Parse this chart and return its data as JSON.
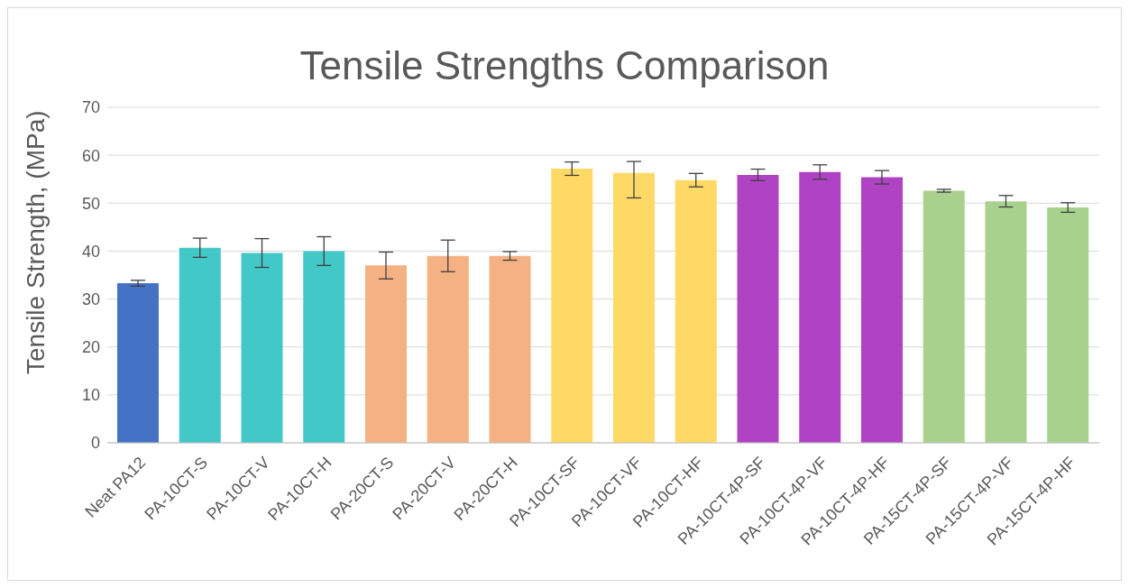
{
  "chart_data": {
    "type": "bar",
    "title": "Tensile Strengths Comparison",
    "ylabel": "Tensile Strength, (MPa)",
    "categories": [
      "Neat PA12",
      "PA-10CT-S",
      "PA-10CT-V",
      "PA-10CT-H",
      "PA-20CT-S",
      "PA-20CT-V",
      "PA-20CT-H",
      "PA-10CT-SF",
      "PA-10CT-VF",
      "PA-10CT-HF",
      "PA-10CT-4P-SF",
      "PA-10CT-4P-VF",
      "PA-10CT-4P-HF",
      "PA-15CT-4P-SF",
      "PA-15CT-4P-VF",
      "PA-15CT-4P-HF"
    ],
    "values": [
      33.3,
      40.7,
      39.6,
      40,
      37,
      39,
      39,
      57.2,
      56.3,
      54.8,
      55.9,
      56.5,
      55.4,
      52.6,
      50.4,
      49.1
    ],
    "errors": [
      0.6,
      2,
      3,
      3,
      2.8,
      3.3,
      0.9,
      1.4,
      [
        51.1,
        58.7
      ],
      1.4,
      1.2,
      1.5,
      1.4,
      0.3,
      1.2,
      1
    ],
    "colors": [
      "#4472c4",
      "#43c8c8",
      "#43c8c8",
      "#43c8c8",
      "#f4b183",
      "#f4b183",
      "#f4b183",
      "#ffd966",
      "#ffd966",
      "#ffd966",
      "#b042c4",
      "#b042c4",
      "#b042c4",
      "#a9d18e",
      "#a9d18e",
      "#a9d18e"
    ],
    "ylim": [
      0,
      70
    ],
    "yticks": [
      0,
      10,
      20,
      30,
      40,
      50,
      60,
      70
    ],
    "grid": "y",
    "legend": false
  }
}
